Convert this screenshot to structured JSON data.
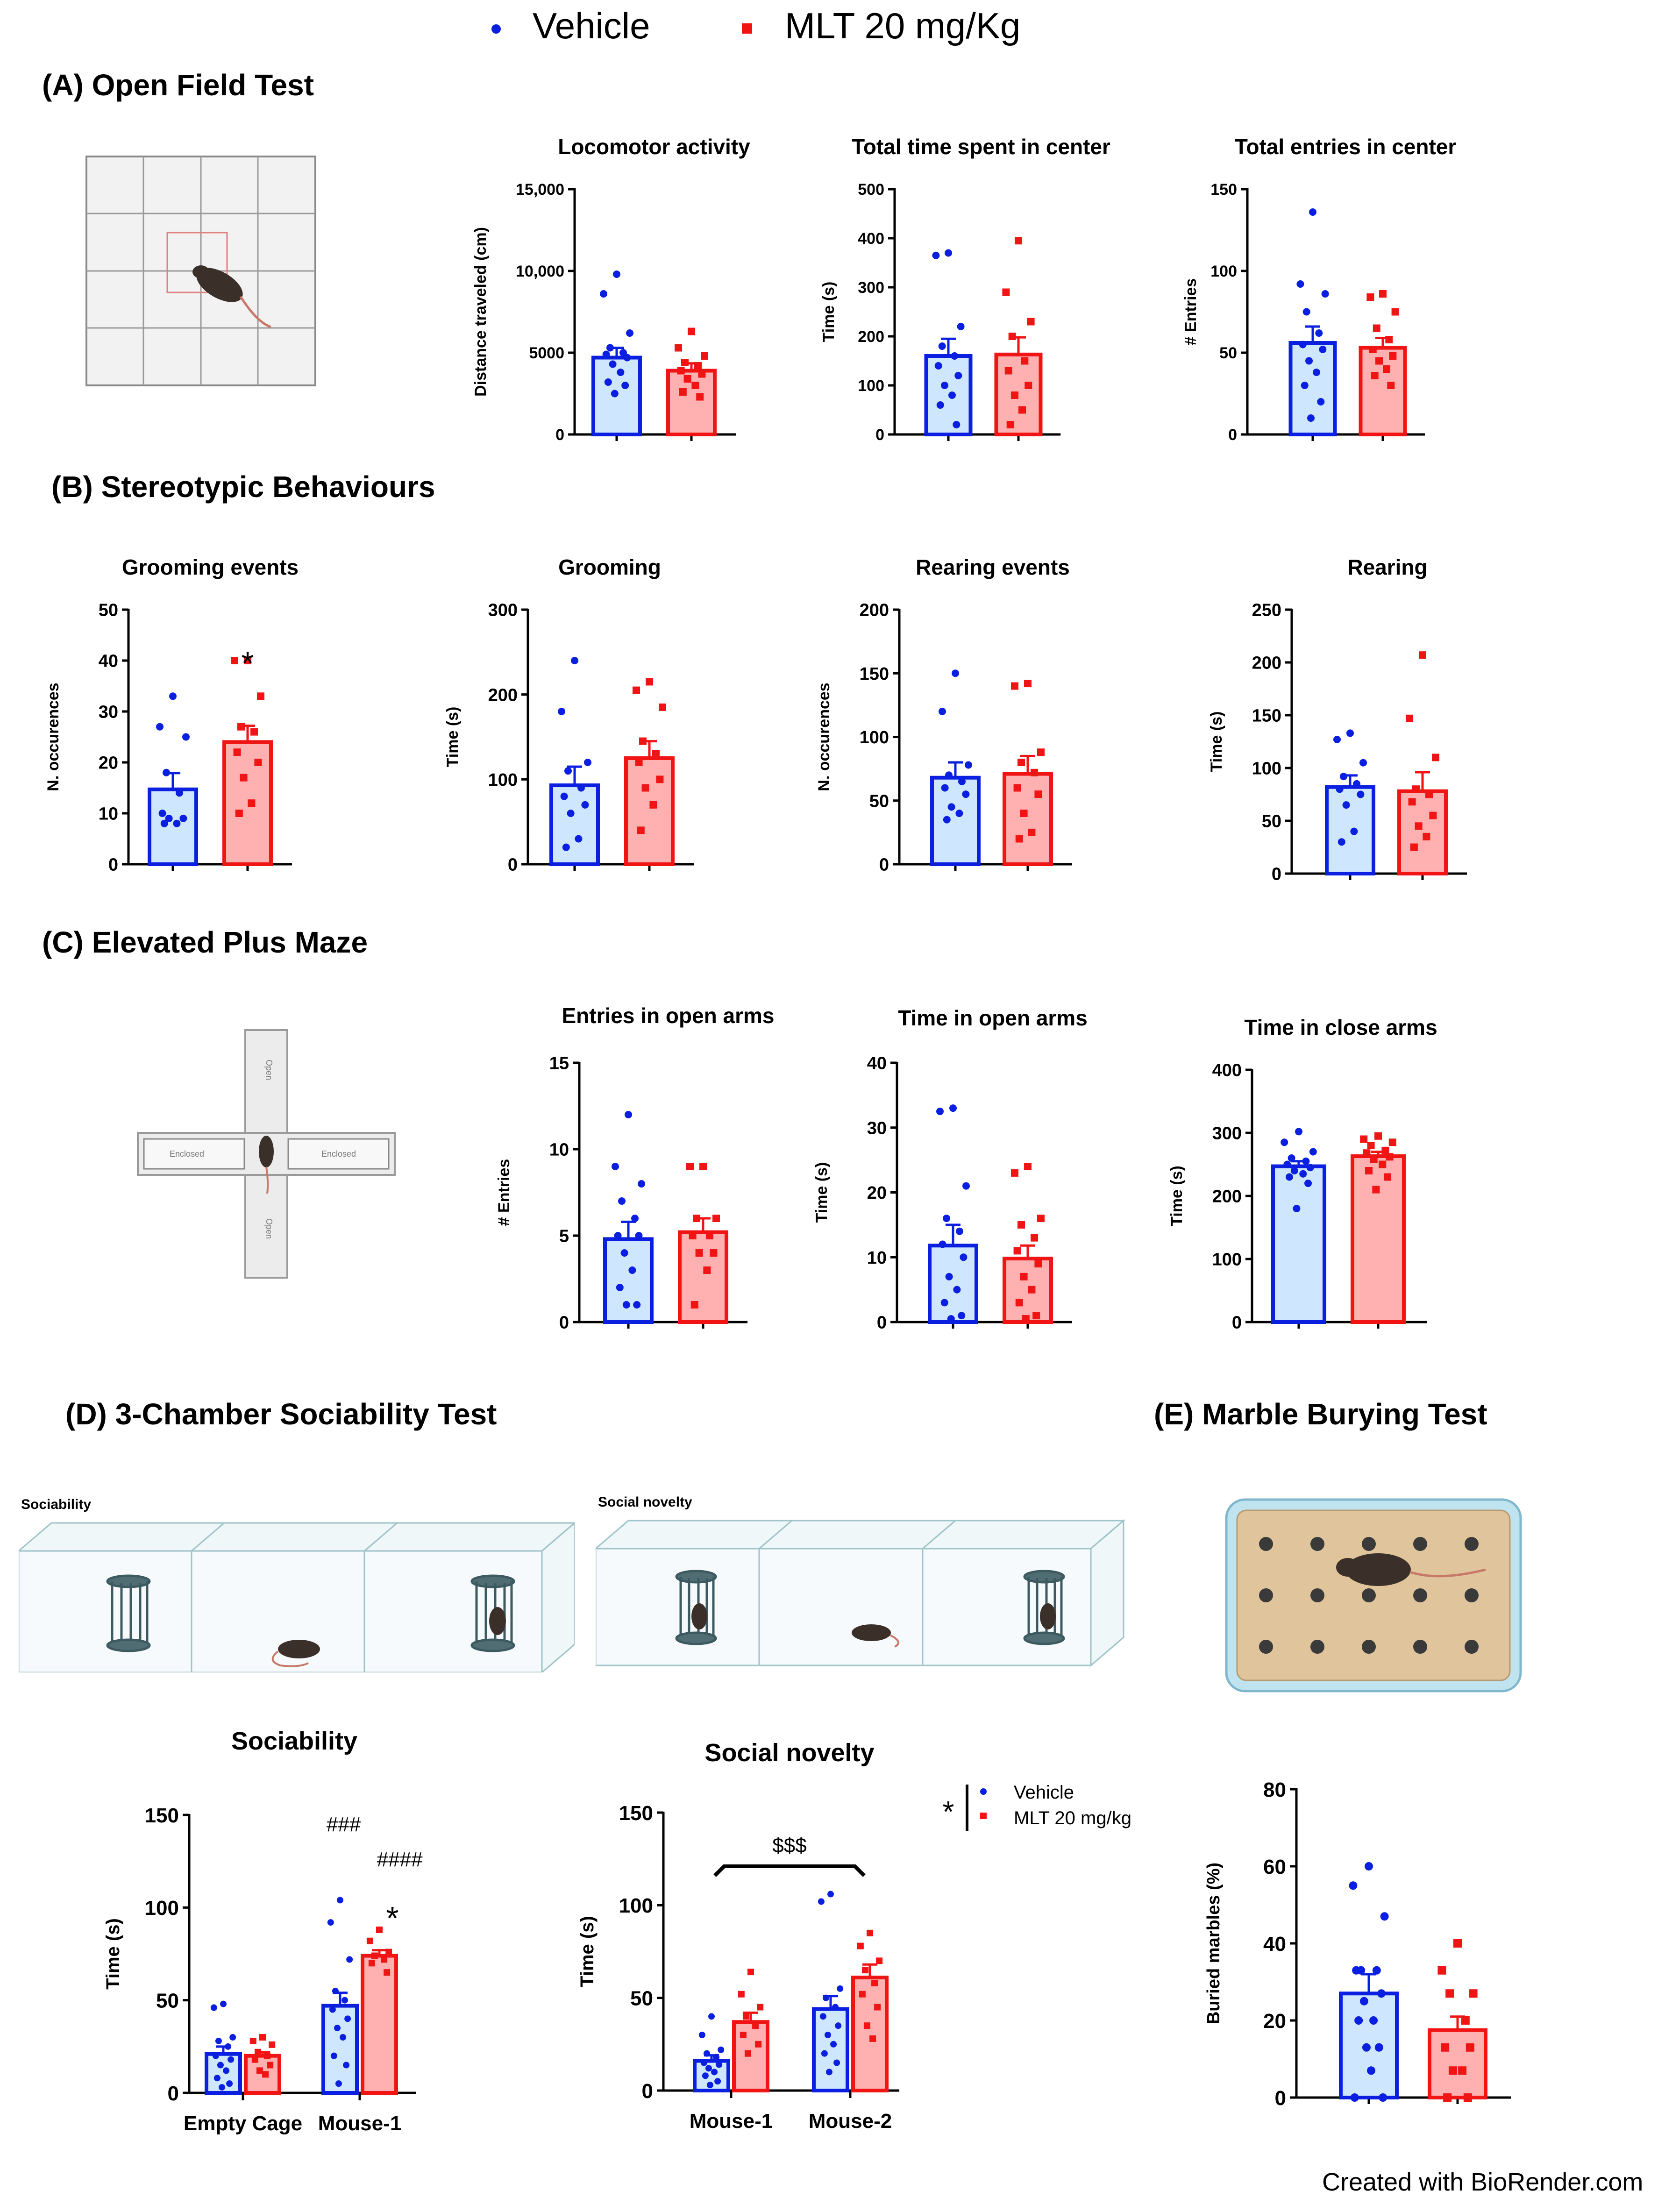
{
  "legend": {
    "vehicle_label": "Vehicle",
    "mlt_label": "MLT 20 mg/Kg",
    "vehicle_color": "#0a1fe0",
    "vehicle_fill": "#cfe6ff",
    "mlt_color": "#f01414",
    "mlt_fill": "#ffb0b0"
  },
  "sections": {
    "a": "(A) Open Field Test",
    "b": "(B) Stereotypic Behaviours",
    "c": "(C) Elevated Plus Maze",
    "d": "(D) 3-Chamber Sociability Test",
    "e": "(E) Marble Burying Test"
  },
  "illustrations": {
    "epm_open": "Open",
    "epm_enclosed": "Enclosed",
    "sociability_label": "Sociability",
    "social_novelty_label": "Social novelty"
  },
  "credit": "Created with BioRender.com",
  "chart_data": [
    {
      "id": "locomotor",
      "type": "bar",
      "title": "Locomotor activity",
      "ylabel": "Distance traveled (cm)",
      "ylim": [
        0,
        15000
      ],
      "ytick_labels": [
        "0",
        "5000",
        "10,000",
        "15,000"
      ],
      "series": [
        {
          "name": "Vehicle",
          "mean": 4700,
          "sem": 600,
          "points": [
            9800,
            8600,
            6200,
            5300,
            5000,
            4900,
            4700,
            4300,
            3800,
            3200,
            3000,
            2500
          ]
        },
        {
          "name": "MLT 20 mg/Kg",
          "mean": 3900,
          "sem": 450,
          "points": [
            6300,
            5300,
            4800,
            4400,
            4200,
            3900,
            3700,
            3400,
            3000,
            2600,
            2300
          ]
        }
      ]
    },
    {
      "id": "center_time",
      "type": "bar",
      "title": "Total time spent in center",
      "ylabel": "Time (s)",
      "ylim": [
        0,
        500
      ],
      "ytick_labels": [
        "0",
        "100",
        "200",
        "300",
        "400",
        "500"
      ],
      "series": [
        {
          "name": "Vehicle",
          "mean": 160,
          "sem": 35,
          "points": [
            370,
            365,
            220,
            180,
            160,
            140,
            120,
            100,
            80,
            60,
            20
          ]
        },
        {
          "name": "MLT 20 mg/Kg",
          "mean": 163,
          "sem": 35,
          "points": [
            395,
            290,
            230,
            200,
            150,
            130,
            100,
            80,
            50,
            20
          ]
        }
      ]
    },
    {
      "id": "center_entries",
      "type": "bar",
      "title": "Total entries in center",
      "ylabel": "# Entries",
      "ylim": [
        0,
        150
      ],
      "ytick_labels": [
        "0",
        "50",
        "100",
        "150"
      ],
      "series": [
        {
          "name": "Vehicle",
          "mean": 56,
          "sem": 10,
          "points": [
            136,
            92,
            86,
            75,
            62,
            55,
            52,
            45,
            38,
            30,
            20,
            10
          ]
        },
        {
          "name": "MLT 20 mg/Kg",
          "mean": 53,
          "sem": 6,
          "points": [
            86,
            84,
            75,
            65,
            58,
            52,
            48,
            45,
            40,
            36,
            30
          ]
        }
      ]
    },
    {
      "id": "grooming_events",
      "type": "bar",
      "title": "Grooming events",
      "ylabel": "N. occurences",
      "ylim": [
        0,
        50
      ],
      "ytick_labels": [
        "0",
        "10",
        "20",
        "30",
        "40",
        "50"
      ],
      "annotation": "*",
      "series": [
        {
          "name": "Vehicle",
          "mean": 14.7,
          "sem": 3.2,
          "points": [
            33,
            27,
            25,
            18,
            14,
            10,
            9,
            9,
            8,
            8
          ]
        },
        {
          "name": "MLT 20 mg/Kg",
          "mean": 24,
          "sem": 3.2,
          "points": [
            40,
            40,
            33,
            27,
            26,
            22,
            20,
            17,
            12,
            10
          ]
        }
      ]
    },
    {
      "id": "grooming_time",
      "type": "bar",
      "title": "Grooming",
      "ylabel": "Time (s)",
      "ylim": [
        0,
        300
      ],
      "ytick_labels": [
        "0",
        "100",
        "200",
        "300"
      ],
      "series": [
        {
          "name": "Vehicle",
          "mean": 93,
          "sem": 22,
          "points": [
            240,
            180,
            120,
            110,
            90,
            80,
            70,
            60,
            30,
            20
          ]
        },
        {
          "name": "MLT 20 mg/Kg",
          "mean": 125,
          "sem": 20,
          "points": [
            215,
            205,
            185,
            145,
            130,
            120,
            100,
            90,
            70,
            40
          ]
        }
      ]
    },
    {
      "id": "rearing_events",
      "type": "bar",
      "title": "Rearing events",
      "ylabel": "N. occurences",
      "ylim": [
        0,
        200
      ],
      "ytick_labels": [
        "0",
        "50",
        "100",
        "150",
        "200"
      ],
      "series": [
        {
          "name": "Vehicle",
          "mean": 68,
          "sem": 12,
          "points": [
            150,
            120,
            78,
            70,
            65,
            60,
            55,
            45,
            40,
            35
          ]
        },
        {
          "name": "MLT 20 mg/Kg",
          "mean": 71,
          "sem": 14,
          "points": [
            142,
            140,
            88,
            80,
            72,
            60,
            55,
            40,
            25,
            20
          ]
        }
      ]
    },
    {
      "id": "rearing_time",
      "type": "bar",
      "title": "Rearing",
      "ylabel": "Time (s)",
      "ylim": [
        0,
        250
      ],
      "ytick_labels": [
        "0",
        "50",
        "100",
        "150",
        "200",
        "250"
      ],
      "series": [
        {
          "name": "Vehicle",
          "mean": 82,
          "sem": 11,
          "points": [
            133,
            127,
            105,
            92,
            85,
            80,
            75,
            65,
            40,
            30
          ]
        },
        {
          "name": "MLT 20 mg/Kg",
          "mean": 78,
          "sem": 18,
          "points": [
            207,
            147,
            110,
            80,
            75,
            68,
            55,
            45,
            35,
            25
          ]
        }
      ]
    },
    {
      "id": "open_entries",
      "type": "bar",
      "title": "Entries in open arms",
      "ylabel": "# Entries",
      "ylim": [
        0,
        15
      ],
      "ytick_labels": [
        "0",
        "5",
        "10",
        "15"
      ],
      "series": [
        {
          "name": "Vehicle",
          "mean": 4.8,
          "sem": 1.0,
          "points": [
            12,
            9,
            8,
            7,
            6,
            5,
            5,
            4,
            3,
            2,
            1,
            1
          ]
        },
        {
          "name": "MLT 20 mg/Kg",
          "mean": 5.2,
          "sem": 0.8,
          "points": [
            9,
            9,
            6,
            6,
            5,
            5,
            4,
            4,
            3,
            1
          ]
        }
      ]
    },
    {
      "id": "open_time",
      "type": "bar",
      "title": "Time in open arms",
      "ylabel": "Time (s)",
      "ylim": [
        0,
        40
      ],
      "ytick_labels": [
        "0",
        "10",
        "20",
        "30",
        "40"
      ],
      "series": [
        {
          "name": "Vehicle",
          "mean": 11.8,
          "sem": 3.2,
          "points": [
            33,
            32.5,
            21,
            16,
            14,
            12,
            10,
            7,
            5,
            3,
            1,
            0.5
          ]
        },
        {
          "name": "MLT 20 mg/Kg",
          "mean": 9.8,
          "sem": 2.0,
          "points": [
            24,
            23,
            16,
            15,
            13,
            11,
            9,
            7,
            5,
            3,
            1,
            0.5
          ]
        }
      ]
    },
    {
      "id": "closed_time",
      "type": "bar",
      "title": "Time in close arms",
      "ylabel": "Time (s)",
      "ylim": [
        0,
        400
      ],
      "ytick_labels": [
        "0",
        "100",
        "200",
        "300",
        "400"
      ],
      "series": [
        {
          "name": "Vehicle",
          "mean": 247,
          "sem": 8,
          "points": [
            302,
            285,
            270,
            260,
            255,
            250,
            245,
            240,
            235,
            230,
            220,
            180
          ]
        },
        {
          "name": "MLT 20 mg/Kg",
          "mean": 263,
          "sem": 7,
          "points": [
            295,
            290,
            285,
            280,
            272,
            268,
            262,
            258,
            250,
            240,
            230,
            210
          ]
        }
      ]
    },
    {
      "id": "sociability",
      "type": "bar",
      "title": "Sociability",
      "ylabel": "Time (s)",
      "ylim": [
        0,
        150
      ],
      "ytick_labels": [
        "0",
        "50",
        "100",
        "150"
      ],
      "categories": [
        "Empty Cage",
        "Mouse-1"
      ],
      "annotations": {
        "vehicle_hash": "###",
        "mlt_hash": "####",
        "mlt_star": "*"
      },
      "series": [
        {
          "name": "Vehicle",
          "means": [
            21,
            47
          ],
          "sems": [
            4,
            7
          ],
          "points": [
            [
              48,
              46,
              30,
              28,
              25,
              20,
              18,
              15,
              12,
              8,
              5,
              3
            ],
            [
              104,
              92,
              72,
              55,
              50,
              45,
              40,
              35,
              30,
              20,
              15,
              5
            ]
          ]
        },
        {
          "name": "MLT 20 mg/Kg",
          "means": [
            20,
            74
          ],
          "sems": [
            2,
            3
          ],
          "points": [
            [
              30,
              28,
              26,
              22,
              20,
              18,
              15,
              12,
              10
            ],
            [
              88,
              82,
              76,
              74,
              72,
              70,
              65
            ]
          ]
        }
      ]
    },
    {
      "id": "social_novelty",
      "type": "bar",
      "title": "Social novelty",
      "ylabel": "Time (s)",
      "ylim": [
        0,
        150
      ],
      "ytick_labels": [
        "0",
        "50",
        "100",
        "150"
      ],
      "categories": [
        "Mouse-1",
        "Mouse-2"
      ],
      "annotations": {
        "bracket": "$$$",
        "legend_star": "*"
      },
      "legend": [
        "Vehicle",
        "MLT 20 mg/kg"
      ],
      "series": [
        {
          "name": "Vehicle",
          "means": [
            16,
            44
          ],
          "sems": [
            3,
            7
          ],
          "points": [
            [
              40,
              30,
              22,
              20,
              18,
              15,
              14,
              12,
              10,
              8,
              5,
              3
            ],
            [
              106,
              102,
              55,
              50,
              45,
              40,
              35,
              30,
              25,
              20,
              15,
              10
            ]
          ]
        },
        {
          "name": "MLT 20 mg/Kg",
          "means": [
            37,
            61
          ],
          "sems": [
            5,
            7
          ],
          "points": [
            [
              64,
              52,
              45,
              40,
              35,
              30,
              25,
              20
            ],
            [
              85,
              78,
              70,
              65,
              58,
              52,
              45,
              35,
              28
            ]
          ]
        }
      ]
    },
    {
      "id": "marble",
      "type": "bar",
      "title": "",
      "ylabel": "Buried marbles (%)",
      "ylim": [
        0,
        80
      ],
      "ytick_labels": [
        "0",
        "20",
        "40",
        "60",
        "80"
      ],
      "series": [
        {
          "name": "Vehicle",
          "mean": 27,
          "sem": 5,
          "points": [
            60,
            55,
            47,
            33,
            33,
            33,
            27,
            25,
            20,
            20,
            13,
            13,
            7,
            0,
            0
          ]
        },
        {
          "name": "MLT 20 mg/Kg",
          "mean": 17.5,
          "sem": 3.5,
          "points": [
            40,
            33,
            27,
            27,
            20,
            13,
            13,
            7,
            7,
            0,
            0
          ]
        }
      ]
    }
  ]
}
